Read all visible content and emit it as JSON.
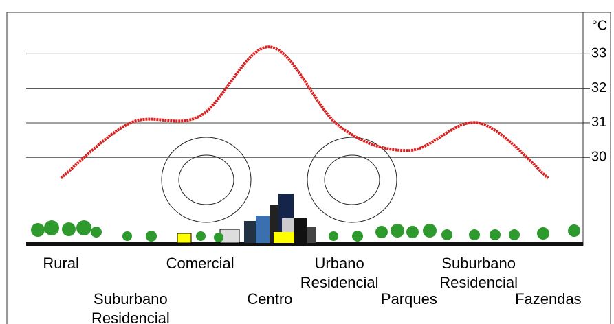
{
  "chart_data": {
    "type": "line",
    "y_label": "°C",
    "categories": [
      "Rural",
      "Suburbano Residencial",
      "Comercial",
      "Centro",
      "Urbano Residencial",
      "Parques",
      "Suburbano Residencial",
      "Fazendas"
    ],
    "values": [
      29.4,
      31.0,
      31.2,
      33.2,
      30.9,
      30.2,
      31.0,
      29.4
    ],
    "color": "#dd1f1f",
    "ylim": [
      27.5,
      34.2
    ],
    "yticks": [
      30,
      31,
      32,
      33
    ],
    "grid": true
  }
}
